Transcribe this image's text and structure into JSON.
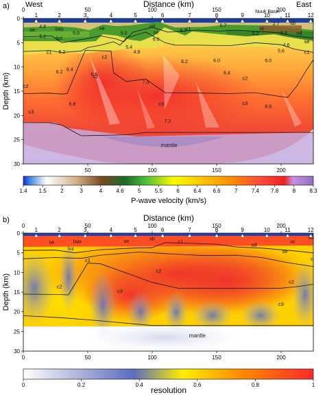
{
  "chart_data": [
    {
      "type": "heatmap",
      "panel_label": "a)",
      "title": "Distance (km)",
      "left_label": "West",
      "right_label": "East",
      "basin_label": "Nuuk Basin",
      "xlabel": "Distance (km)",
      "ylabel": "Depth (km)",
      "xlim": [
        0,
        225
      ],
      "ylim": [
        0,
        30
      ],
      "y_inverted": true,
      "x_top_ticks": [
        0,
        50,
        100,
        150,
        200
      ],
      "x_bottom_ticks": [
        50,
        100,
        150,
        200
      ],
      "y_ticks": [
        0,
        5,
        10,
        15,
        20,
        25,
        30
      ],
      "obs": [
        {
          "id": "1",
          "x": 10
        },
        {
          "id": "2",
          "x": 28
        },
        {
          "id": "3",
          "x": 48
        },
        {
          "id": "4",
          "x": 68
        },
        {
          "id": "5",
          "x": 87
        },
        {
          "id": "6",
          "x": 108
        },
        {
          "id": "7",
          "x": 129
        },
        {
          "id": "8",
          "x": 150
        },
        {
          "id": "9",
          "x": 170
        },
        {
          "id": "10",
          "x": 189
        },
        {
          "id": "11",
          "x": 205
        },
        {
          "id": "12",
          "x": 223
        }
      ],
      "velocity_labels": [
        {
          "text": "4.8",
          "x": 15,
          "y": 2.0
        },
        {
          "text": "5.2",
          "x": 15,
          "y": 4.0
        },
        {
          "text": "5.0",
          "x": 41,
          "y": 3.3
        },
        {
          "text": "5.0",
          "x": 78,
          "y": 3.3
        },
        {
          "text": "5.4",
          "x": 82,
          "y": 6.2
        },
        {
          "text": "4.8",
          "x": 88,
          "y": 7.2
        },
        {
          "text": "5.7",
          "x": 124,
          "y": 2.8
        },
        {
          "text": "6.0",
          "x": 103,
          "y": 4.6
        },
        {
          "text": "6.0",
          "x": 150,
          "y": 9.0
        },
        {
          "text": "6.2",
          "x": 125,
          "y": 9.2
        },
        {
          "text": "5.2",
          "x": 180,
          "y": 3.4
        },
        {
          "text": "5.6",
          "x": 200,
          "y": 7.0
        },
        {
          "text": "4.6",
          "x": 204,
          "y": 5.8
        },
        {
          "text": "6.0",
          "x": 190,
          "y": 9.0
        },
        {
          "text": "6.2",
          "x": 30,
          "y": 7.2
        },
        {
          "text": "6.4",
          "x": 36,
          "y": 10.8
        },
        {
          "text": "6.2",
          "x": 28,
          "y": 11.3
        },
        {
          "text": "6.6",
          "x": 55,
          "y": 11.8
        },
        {
          "text": "6.4",
          "x": 158,
          "y": 11.5
        },
        {
          "text": "7.0",
          "x": 95,
          "y": 13.5
        },
        {
          "text": "6.8",
          "x": 38,
          "y": 18.0
        },
        {
          "text": "6.8",
          "x": 190,
          "y": 18.5
        },
        {
          "text": "7.2",
          "x": 112,
          "y": 21.5
        },
        {
          "text": "2.7",
          "x": 196,
          "y": 1.4
        },
        {
          "text": "3.3",
          "x": 202,
          "y": 3.3
        },
        {
          "text": "5.7",
          "x": 155,
          "y": 1.8
        }
      ],
      "layer_labels": [
        {
          "text": "se",
          "x": 7,
          "y": 2.7
        },
        {
          "text": "bas",
          "x": 28,
          "y": 2.5
        },
        {
          "text": "lvz",
          "x": 28,
          "y": 4.4
        },
        {
          "text": "se",
          "x": 61,
          "y": 2.3
        },
        {
          "text": "sd",
          "x": 100,
          "y": 1.9
        },
        {
          "text": "se",
          "x": 103,
          "y": 3.2
        },
        {
          "text": "c1",
          "x": 128,
          "y": 2.5
        },
        {
          "text": "c1",
          "x": 20,
          "y": 7.3
        },
        {
          "text": "c2",
          "x": 2,
          "y": 14.3
        },
        {
          "text": "c3",
          "x": 6,
          "y": 19.6
        },
        {
          "text": "c2",
          "x": 56,
          "y": 12.3
        },
        {
          "text": "c2",
          "x": 63,
          "y": 8.3
        },
        {
          "text": "c3",
          "x": 107,
          "y": 18.0
        },
        {
          "text": "c2",
          "x": 172,
          "y": 12.7
        },
        {
          "text": "c3",
          "x": 172,
          "y": 17.8
        },
        {
          "text": "c1",
          "x": 220,
          "y": 7.3
        },
        {
          "text": "sb",
          "x": 209,
          "y": 1.3
        },
        {
          "text": "sc",
          "x": 185,
          "y": 2.4
        },
        {
          "text": "sd",
          "x": 214,
          "y": 3.3
        },
        {
          "text": "se",
          "x": 220,
          "y": 5.1
        },
        {
          "text": "mantle",
          "x": 113,
          "y": 26.5
        }
      ],
      "layer_boundaries": [
        {
          "name": "base_se_west",
          "points": [
            [
              0,
              3.8
            ],
            [
              22,
              3.6
            ],
            [
              30,
              5.0
            ],
            [
              48,
              4.2
            ],
            [
              60,
              3.6
            ],
            [
              72,
              4.2
            ],
            [
              78,
              4.8
            ],
            [
              85,
              2.8
            ],
            [
              100,
              1.8
            ],
            [
              112,
              2.8
            ],
            [
              135,
              2.4
            ],
            [
              152,
              2.6
            ],
            [
              165,
              2.4
            ],
            [
              185,
              2.7
            ],
            [
              200,
              3.0
            ],
            [
              210,
              3.6
            ],
            [
              225,
              4.0
            ]
          ]
        },
        {
          "name": "base_c1",
          "points": [
            [
              0,
              6.8
            ],
            [
              20,
              6.6
            ],
            [
              30,
              7.0
            ],
            [
              45,
              6.7
            ],
            [
              50,
              6.0
            ],
            [
              60,
              5.5
            ],
            [
              70,
              4.8
            ],
            [
              75,
              5.5
            ],
            [
              80,
              4.0
            ],
            [
              95,
              2.8
            ],
            [
              110,
              5.0
            ],
            [
              118,
              5.5
            ],
            [
              135,
              5.5
            ],
            [
              160,
              5.6
            ],
            [
              180,
              5.0
            ],
            [
              200,
              5.4
            ],
            [
              210,
              6.3
            ],
            [
              225,
              7.0
            ]
          ]
        },
        {
          "name": "base_c2",
          "points": [
            [
              0,
              15.5
            ],
            [
              20,
              15.4
            ],
            [
              30,
              15.6
            ],
            [
              34,
              15.5
            ],
            [
              48,
              6.6
            ],
            [
              68,
              6.7
            ],
            [
              70,
              11.2
            ],
            [
              80,
              13.0
            ],
            [
              95,
              12.5
            ],
            [
              110,
              15.3
            ],
            [
              140,
              15.4
            ],
            [
              160,
              15.5
            ],
            [
              180,
              15.3
            ],
            [
              197,
              16.0
            ],
            [
              205,
              16.3
            ],
            [
              212,
              14.0
            ],
            [
              220,
              10.5
            ],
            [
              225,
              8.5
            ]
          ]
        },
        {
          "name": "moho",
          "points": [
            [
              0,
              21.5
            ],
            [
              20,
              21.5
            ],
            [
              30,
              22.0
            ],
            [
              40,
              23.5
            ],
            [
              45,
              24.2
            ],
            [
              80,
              24.0
            ],
            [
              95,
              23.5
            ],
            [
              110,
              23.5
            ],
            [
              140,
              23.5
            ],
            [
              170,
              23.5
            ],
            [
              200,
              23.5
            ],
            [
              225,
              23.5
            ]
          ]
        }
      ],
      "colorbar": {
        "label": "P-wave velocity (km/s)",
        "ticks": [
          1.4,
          1.5,
          2.0,
          3.0,
          4.0,
          4.6,
          5.0,
          5.5,
          6.0,
          6.4,
          6.6,
          7.0,
          7.4,
          7.8,
          8.0,
          8.3
        ],
        "colors": [
          "#1e2ad0",
          "#3a7fe0",
          "#ffffff",
          "#d2b48c",
          "#a07040",
          "#ff8cff",
          "#1a6a2a",
          "#4bbd3c",
          "#fffb00",
          "#ffc400",
          "#ff9900",
          "#ff6a3a",
          "#ff4040",
          "#ee2020",
          "#c890e0",
          "#9070c0"
        ]
      }
    },
    {
      "type": "heatmap",
      "panel_label": "b)",
      "title": "Distance (km)",
      "xlabel": "Distance (km)",
      "ylabel": "Depth (km)",
      "xlim": [
        0,
        225
      ],
      "ylim": [
        0,
        30
      ],
      "y_inverted": true,
      "x_top_ticks": [
        0,
        50,
        100,
        150,
        200
      ],
      "x_bottom_ticks": [
        0,
        50,
        100,
        150,
        200
      ],
      "y_ticks": [
        0,
        5,
        10,
        15,
        20,
        25,
        30
      ],
      "obs": [
        {
          "id": "1",
          "x": 10
        },
        {
          "id": "2",
          "x": 28
        },
        {
          "id": "3",
          "x": 48
        },
        {
          "id": "4",
          "x": 68
        },
        {
          "id": "5",
          "x": 87
        },
        {
          "id": "6",
          "x": 108
        },
        {
          "id": "7",
          "x": 129
        },
        {
          "id": "8",
          "x": 150
        },
        {
          "id": "9",
          "x": 170
        },
        {
          "id": "10",
          "x": 189
        },
        {
          "id": "11",
          "x": 205
        },
        {
          "id": "12",
          "x": 223
        }
      ],
      "layer_labels": [
        {
          "text": "se",
          "x": 22,
          "y": 2.7
        },
        {
          "text": "bas",
          "x": 42,
          "y": 2.5
        },
        {
          "text": "lvz",
          "x": 37,
          "y": 4.4
        },
        {
          "text": "se",
          "x": 80,
          "y": 2.4
        },
        {
          "text": "sb",
          "x": 100,
          "y": 1.8
        },
        {
          "text": "c1",
          "x": 122,
          "y": 2.5
        },
        {
          "text": "c1",
          "x": 50,
          "y": 7.3
        },
        {
          "text": "c2",
          "x": 28,
          "y": 14.0
        },
        {
          "text": "c3",
          "x": 75,
          "y": 15.2
        },
        {
          "text": "c2",
          "x": 105,
          "y": 10.0
        },
        {
          "text": "c2",
          "x": 208,
          "y": 12.8
        },
        {
          "text": "c3",
          "x": 200,
          "y": 18.5
        },
        {
          "text": "sd",
          "x": 179,
          "y": 3.4
        },
        {
          "text": "se",
          "x": 203,
          "y": 5.1
        },
        {
          "text": "sb",
          "x": 223,
          "y": 1.5
        },
        {
          "text": "sc",
          "x": 209,
          "y": 2.5
        },
        {
          "text": "c1",
          "x": 225,
          "y": 7.0
        },
        {
          "text": "mantle",
          "x": 135,
          "y": 26.5
        }
      ],
      "layer_boundaries": [
        {
          "name": "base_se",
          "points": [
            [
              0,
              4.4
            ],
            [
              25,
              4.3
            ],
            [
              40,
              5.0
            ],
            [
              60,
              4.2
            ],
            [
              85,
              3.8
            ],
            [
              100,
              3.7
            ],
            [
              110,
              2.4
            ],
            [
              130,
              2.6
            ],
            [
              150,
              2.8
            ],
            [
              165,
              3.5
            ],
            [
              185,
              3.8
            ],
            [
              210,
              4.5
            ],
            [
              225,
              5.0
            ]
          ]
        },
        {
          "name": "base_c1",
          "points": [
            [
              0,
              6.5
            ],
            [
              25,
              6.2
            ],
            [
              45,
              6.4
            ],
            [
              60,
              5.6
            ],
            [
              90,
              4.8
            ],
            [
              110,
              5.2
            ],
            [
              128,
              5.5
            ],
            [
              140,
              5.7
            ],
            [
              165,
              5.6
            ],
            [
              185,
              6.2
            ],
            [
              205,
              7.5
            ],
            [
              225,
              8.5
            ]
          ]
        },
        {
          "name": "base_c2",
          "points": [
            [
              0,
              15.5
            ],
            [
              25,
              15.6
            ],
            [
              35,
              15.7
            ],
            [
              50,
              7.6
            ],
            [
              60,
              7.8
            ],
            [
              100,
              12.5
            ],
            [
              120,
              14.0
            ],
            [
              140,
              14.0
            ],
            [
              170,
              14.0
            ],
            [
              200,
              14.0
            ],
            [
              215,
              13.5
            ],
            [
              225,
              13.0
            ]
          ]
        },
        {
          "name": "moho",
          "points": [
            [
              0,
              21.0
            ],
            [
              30,
              21.5
            ],
            [
              60,
              22.3
            ],
            [
              100,
              23.5
            ],
            [
              140,
              23.5
            ],
            [
              180,
              23.5
            ],
            [
              225,
              23.5
            ]
          ]
        }
      ],
      "colorbar": {
        "label": "resolution",
        "ticks": [
          0,
          0.2,
          0.4,
          0.6,
          0.8,
          1.0
        ],
        "colors": [
          "#ffffff",
          "#aab0d8",
          "#5a6cc0",
          "#ffef00",
          "#ff8a00",
          "#ff2a2a"
        ]
      }
    }
  ]
}
